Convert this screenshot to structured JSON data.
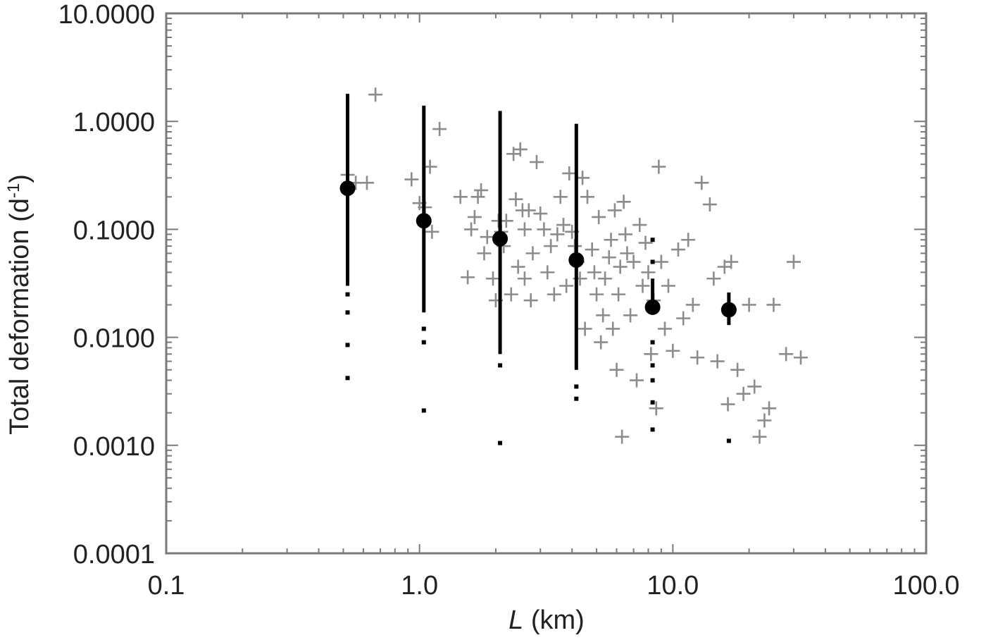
{
  "chart_data": {
    "type": "scatter",
    "title": "",
    "xlabel_italic": "L",
    "xlabel_rest": " (km)",
    "ylabel_main": "Total deformation  (d",
    "ylabel_sup": "-1",
    "ylabel_close": ")",
    "x_scale": "log",
    "y_scale": "log",
    "xlim": [
      0.1,
      100.0
    ],
    "ylim": [
      0.0001,
      10.0
    ],
    "x_ticks": [
      {
        "value": 0.1,
        "label": "0.1"
      },
      {
        "value": 1.0,
        "label": "1.0"
      },
      {
        "value": 10.0,
        "label": "10.0"
      },
      {
        "value": 100.0,
        "label": "100.0"
      }
    ],
    "y_ticks": [
      {
        "value": 10.0,
        "label": "10.0000"
      },
      {
        "value": 1.0,
        "label": "1.0000"
      },
      {
        "value": 0.1,
        "label": "0.1000"
      },
      {
        "value": 0.01,
        "label": "0.0100"
      },
      {
        "value": 0.001,
        "label": "0.0010"
      },
      {
        "value": 0.0001,
        "label": "0.0001"
      }
    ],
    "grid": false,
    "colors": {
      "scatter": "#8c8c8c",
      "bins": "#000000",
      "frame": "#7a7a7a"
    },
    "series": [
      {
        "marker": "plus",
        "points": [
          [
            0.52,
            0.32
          ],
          [
            0.56,
            0.27
          ],
          [
            0.62,
            0.27
          ],
          [
            0.67,
            1.77
          ],
          [
            0.93,
            0.29
          ],
          [
            1.0,
            0.175
          ],
          [
            1.05,
            0.16
          ],
          [
            1.1,
            0.38
          ],
          [
            1.12,
            0.095
          ],
          [
            1.2,
            0.85
          ],
          [
            1.45,
            0.2
          ],
          [
            1.6,
            0.1
          ],
          [
            1.55,
            0.036
          ],
          [
            1.65,
            0.13
          ],
          [
            1.7,
            0.2
          ],
          [
            1.75,
            0.23
          ],
          [
            1.8,
            0.06
          ],
          [
            1.85,
            0.085
          ],
          [
            1.95,
            0.035
          ],
          [
            2.0,
            0.022
          ],
          [
            2.05,
            0.12
          ],
          [
            2.1,
            0.095
          ],
          [
            2.15,
            0.07
          ],
          [
            2.2,
            0.12
          ],
          [
            2.3,
            0.025
          ],
          [
            2.35,
            0.5
          ],
          [
            2.4,
            0.19
          ],
          [
            2.45,
            0.045
          ],
          [
            2.5,
            0.55
          ],
          [
            2.55,
            0.15
          ],
          [
            2.6,
            0.1
          ],
          [
            2.6,
            0.035
          ],
          [
            2.7,
            0.15
          ],
          [
            2.75,
            0.022
          ],
          [
            2.8,
            0.06
          ],
          [
            2.9,
            0.42
          ],
          [
            3.0,
            0.14
          ],
          [
            3.1,
            0.1
          ],
          [
            3.2,
            0.04
          ],
          [
            3.3,
            0.07
          ],
          [
            3.4,
            0.025
          ],
          [
            3.5,
            0.09
          ],
          [
            3.6,
            0.2
          ],
          [
            3.7,
            0.11
          ],
          [
            3.8,
            0.03
          ],
          [
            3.9,
            0.33
          ],
          [
            4.0,
            0.095
          ],
          [
            4.1,
            0.07
          ],
          [
            4.2,
            0.05
          ],
          [
            4.3,
            0.035
          ],
          [
            4.4,
            0.3
          ],
          [
            4.5,
            0.012
          ],
          [
            4.6,
            0.2
          ],
          [
            4.8,
            0.065
          ],
          [
            4.9,
            0.04
          ],
          [
            5.0,
            0.025
          ],
          [
            5.1,
            0.13
          ],
          [
            5.2,
            0.009
          ],
          [
            5.3,
            0.016
          ],
          [
            5.4,
            0.035
          ],
          [
            5.6,
            0.055
          ],
          [
            5.7,
            0.08
          ],
          [
            5.8,
            0.012
          ],
          [
            5.9,
            0.15
          ],
          [
            6.0,
            0.005
          ],
          [
            6.1,
            0.025
          ],
          [
            6.2,
            0.045
          ],
          [
            6.3,
            0.0012
          ],
          [
            6.4,
            0.18
          ],
          [
            6.5,
            0.09
          ],
          [
            6.6,
            0.06
          ],
          [
            6.8,
            0.016
          ],
          [
            7.0,
            0.05
          ],
          [
            7.2,
            0.004
          ],
          [
            7.4,
            0.11
          ],
          [
            7.6,
            0.03
          ],
          [
            7.8,
            0.075
          ],
          [
            8.0,
            0.04
          ],
          [
            8.2,
            0.007
          ],
          [
            8.4,
            0.022
          ],
          [
            8.6,
            0.0022
          ],
          [
            8.8,
            0.38
          ],
          [
            9.0,
            0.05
          ],
          [
            9.3,
            0.012
          ],
          [
            9.6,
            0.03
          ],
          [
            10.0,
            0.0075
          ],
          [
            10.5,
            0.065
          ],
          [
            11.0,
            0.015
          ],
          [
            11.5,
            0.08
          ],
          [
            12.0,
            0.02
          ],
          [
            12.5,
            0.0065
          ],
          [
            13.0,
            0.27
          ],
          [
            14.0,
            0.17
          ],
          [
            14.5,
            0.035
          ],
          [
            15.0,
            0.006
          ],
          [
            16.0,
            0.045
          ],
          [
            16.5,
            0.0024
          ],
          [
            17.0,
            0.05
          ],
          [
            18.0,
            0.005
          ],
          [
            19.0,
            0.003
          ],
          [
            20.0,
            0.02
          ],
          [
            21.0,
            0.0035
          ],
          [
            22.0,
            0.0012
          ],
          [
            23.0,
            0.0017
          ],
          [
            24.0,
            0.0022
          ],
          [
            25.0,
            0.02
          ],
          [
            28.0,
            0.007
          ],
          [
            30.0,
            0.05
          ],
          [
            32.0,
            0.0065
          ]
        ]
      },
      {
        "marker": "binned-range",
        "bins": [
          {
            "x": 0.52,
            "mean": 0.24,
            "min": 0.03,
            "max": 1.8,
            "outliers": [
              0.025,
              0.017,
              0.0085,
              0.0042
            ]
          },
          {
            "x": 1.04,
            "mean": 0.12,
            "min": 0.017,
            "max": 1.4,
            "outliers": [
              0.012,
              0.009,
              0.0021
            ]
          },
          {
            "x": 2.08,
            "mean": 0.082,
            "min": 0.007,
            "max": 1.25,
            "outliers": [
              0.0055,
              0.00105
            ]
          },
          {
            "x": 4.16,
            "mean": 0.052,
            "min": 0.005,
            "max": 0.95,
            "outliers": [
              0.0035,
              0.0027
            ]
          },
          {
            "x": 8.32,
            "mean": 0.019,
            "min": 0.022,
            "max": 0.035,
            "outliers": [
              0.08,
              0.05,
              0.009,
              0.0055,
              0.004,
              0.0025,
              0.0014
            ]
          },
          {
            "x": 16.64,
            "mean": 0.018,
            "min": 0.013,
            "max": 0.026,
            "outliers": [
              0.0011
            ]
          }
        ]
      }
    ]
  }
}
